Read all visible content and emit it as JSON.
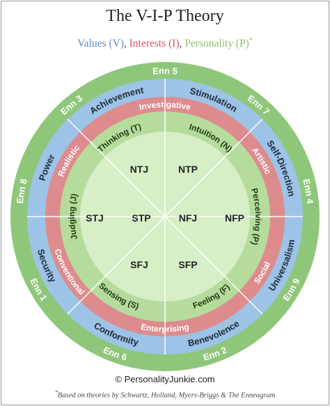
{
  "title": "The V-I-P Theory",
  "legend": {
    "values": "Values (V)",
    "interests": "Interests (I)",
    "personality": "Personality (P)",
    "asterisk": "*",
    "separator": ", ",
    "values_color": "#5b8fcc",
    "interests_color": "#d9535d",
    "personality_color": "#8fbe6b"
  },
  "colors": {
    "outer_ring": "#8fc77a",
    "values_ring": "#9dc3e6",
    "interests_ring": "#de8b8e",
    "personality_ring": "#b5dc9c",
    "center": "#d6efc7",
    "divider": "#ffffff"
  },
  "enneagram": [
    "Enn 5",
    "Enn 7",
    "Enn 4",
    "Enn 9",
    "Enn 2",
    "Enn 6",
    "Enn 1",
    "Enn 8",
    "Enn 3"
  ],
  "values": [
    "Stimulation",
    "Self-Direction",
    "Universalism",
    "Benevolence",
    "Conformity",
    "Security",
    "Power",
    "Achievement"
  ],
  "interests": [
    "Investigative",
    "Artistic",
    "Social",
    "Enterprising",
    "Conventional",
    "Realistic"
  ],
  "functions": [
    "Intuition (N)",
    "Perceiving (P)",
    "Feeling (F)",
    "Sensing (S)",
    "Judging (J)",
    "Thinking (T)"
  ],
  "types": [
    "NTJ",
    "NTP",
    "STJ",
    "STP",
    "NFJ",
    "NFP",
    "SFJ",
    "SFP"
  ],
  "footer": {
    "credit": "© PersonalityJunkie.com",
    "note_mark": "*",
    "note": "Based on theories by Schwartz, Holland, Myers-Briggs & The Enneagram"
  }
}
